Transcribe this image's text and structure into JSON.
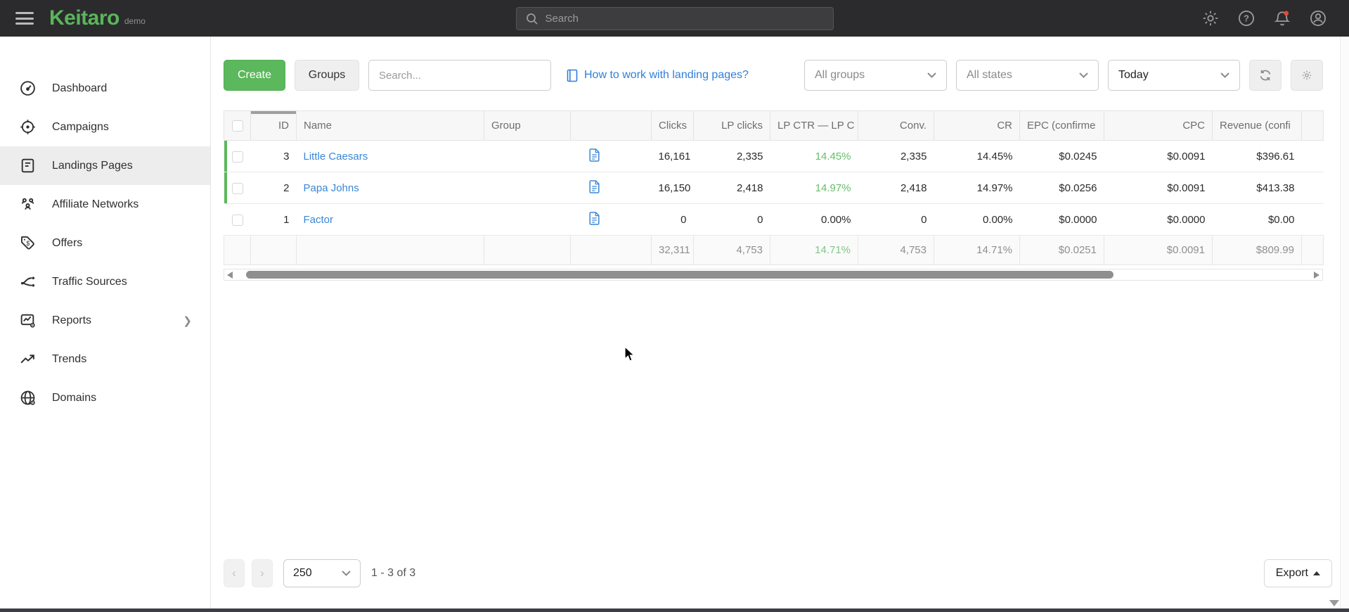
{
  "topbar": {
    "logo": "Keitaro",
    "logo_suffix": "demo",
    "search_placeholder": "Search"
  },
  "sidebar": {
    "items": [
      {
        "label": "Dashboard",
        "icon": "dashboard-icon",
        "active": false
      },
      {
        "label": "Campaigns",
        "icon": "campaigns-icon",
        "active": false
      },
      {
        "label": "Landings Pages",
        "icon": "landing-pages-icon",
        "active": true
      },
      {
        "label": "Affiliate Networks",
        "icon": "affiliate-networks-icon",
        "active": false
      },
      {
        "label": "Offers",
        "icon": "offers-icon",
        "active": false
      },
      {
        "label": "Traffic Sources",
        "icon": "traffic-sources-icon",
        "active": false
      },
      {
        "label": "Reports",
        "icon": "reports-icon",
        "active": false,
        "has_chevron": true
      },
      {
        "label": "Trends",
        "icon": "trends-icon",
        "active": false
      },
      {
        "label": "Domains",
        "icon": "domains-icon",
        "active": false
      }
    ]
  },
  "toolbar": {
    "create_label": "Create",
    "groups_label": "Groups",
    "search_placeholder": "Search...",
    "help_link": "How to work with landing pages?",
    "filter_groups": "All groups",
    "filter_states": "All states",
    "filter_date": "Today"
  },
  "table": {
    "headers": [
      "",
      "ID",
      "Name",
      "Group",
      "",
      "Clicks",
      "LP clicks",
      "LP CTR — LP C",
      "Conv.",
      "CR",
      "EPC (confirme",
      "CPC",
      "Revenue (confi",
      ""
    ],
    "rows": [
      {
        "id": "3",
        "name": "Little Caesars",
        "group": "",
        "clicks": "16,161",
        "lp_clicks": "2,335",
        "lp_ctr": "14.45%",
        "conv": "2,335",
        "cr": "14.45%",
        "epc": "$0.0245",
        "cpc": "$0.0091",
        "revenue": "$396.61",
        "state_green": true
      },
      {
        "id": "2",
        "name": "Papa Johns",
        "group": "",
        "clicks": "16,150",
        "lp_clicks": "2,418",
        "lp_ctr": "14.97%",
        "conv": "2,418",
        "cr": "14.97%",
        "epc": "$0.0256",
        "cpc": "$0.0091",
        "revenue": "$413.38",
        "state_green": true
      },
      {
        "id": "1",
        "name": "Factor",
        "group": "",
        "clicks": "0",
        "lp_clicks": "0",
        "lp_ctr": "0.00%",
        "conv": "0",
        "cr": "0.00%",
        "epc": "$0.0000",
        "cpc": "$0.0000",
        "revenue": "$0.00",
        "state_green": false
      }
    ],
    "totals": {
      "clicks": "32,311",
      "lp_clicks": "4,753",
      "lp_ctr": "14.71%",
      "conv": "4,753",
      "cr": "14.71%",
      "epc": "$0.0251",
      "cpc": "$0.0091",
      "revenue": "$809.99"
    }
  },
  "pagination": {
    "page_size": "250",
    "range_text": "1 - 3 of 3",
    "export_label": "Export"
  },
  "colors": {
    "accent_green": "#5CB85C",
    "link_blue": "#3A87D6",
    "value_green": "#67BD6A",
    "notification_red": "#E04A3F",
    "topbar_bg": "#2B2B2D"
  }
}
